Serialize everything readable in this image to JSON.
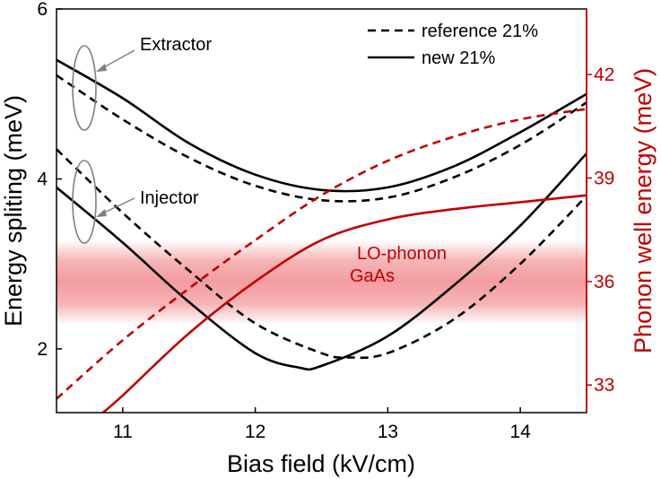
{
  "chart_data": {
    "type": "line",
    "title": "",
    "xlabel": "Bias field (kV/cm)",
    "ylabel": "Energy spliting (meV)",
    "ylabel_right": "Phonon well energy (meV)",
    "xlim": [
      10.5,
      14.5
    ],
    "ylim": [
      1.25,
      6.0
    ],
    "ylim_right": [
      32.2,
      43.9
    ],
    "x_ticks": [
      11,
      12,
      13,
      14
    ],
    "x_tick_labels": [
      "11",
      "12",
      "13",
      "14"
    ],
    "y_ticks": [
      2,
      4,
      6
    ],
    "y_tick_labels": [
      "2",
      "4",
      "6"
    ],
    "y_right_ticks": [
      33,
      36,
      39,
      42
    ],
    "y_right_tick_labels": [
      "33",
      "36",
      "39",
      "42"
    ],
    "legend": {
      "position": "top-right",
      "entries": [
        {
          "label": "reference 21%",
          "style": "dashed"
        },
        {
          "label": "new 21%",
          "style": "solid"
        }
      ]
    },
    "annotations": {
      "extractor": "Extractor",
      "injector": "Injector",
      "lo_phonon_line1": "LO-phonon",
      "lo_phonon_line2": "GaAs",
      "lo_phonon_band": [
        35.25,
        36.7
      ]
    },
    "colors": {
      "black": "#000000",
      "red": "#c00000",
      "band": "#f4a6a8",
      "oval": "#808080"
    },
    "series": [
      {
        "name": "Extractor new 21%",
        "axis": "left",
        "color": "#000000",
        "style": "solid",
        "x": [
          10.5,
          11.0,
          11.5,
          12.0,
          12.5,
          13.0,
          13.5,
          14.0,
          14.5
        ],
        "values": [
          5.4,
          4.95,
          4.42,
          4.05,
          3.87,
          3.9,
          4.15,
          4.55,
          5.0
        ]
      },
      {
        "name": "Extractor reference 21%",
        "axis": "left",
        "color": "#000000",
        "style": "dashed",
        "x": [
          10.5,
          11.0,
          11.5,
          12.0,
          12.5,
          13.0,
          13.5,
          14.0,
          14.5
        ],
        "values": [
          5.22,
          4.7,
          4.25,
          3.92,
          3.75,
          3.78,
          4.02,
          4.4,
          4.9
        ]
      },
      {
        "name": "Injector new 21%",
        "axis": "left",
        "color": "#000000",
        "style": "solid",
        "x": [
          10.5,
          11.0,
          11.5,
          12.0,
          12.33,
          12.5,
          13.0,
          13.5,
          14.0,
          14.5
        ],
        "values": [
          3.9,
          3.25,
          2.55,
          1.95,
          1.78,
          1.8,
          2.15,
          2.75,
          3.45,
          4.3
        ]
      },
      {
        "name": "Injector reference 21%",
        "axis": "left",
        "color": "#000000",
        "style": "dashed",
        "x": [
          10.5,
          11.0,
          11.5,
          12.0,
          12.5,
          12.7,
          13.0,
          13.5,
          14.0,
          14.5
        ],
        "values": [
          4.35,
          3.6,
          2.92,
          2.3,
          1.95,
          1.9,
          1.95,
          2.35,
          3.0,
          3.8
        ]
      },
      {
        "name": "Phonon well reference 21%",
        "axis": "right",
        "color": "#c00000",
        "style": "dashed",
        "x": [
          10.5,
          11.0,
          11.5,
          12.0,
          12.5,
          13.0,
          13.5,
          14.0,
          14.5
        ],
        "values": [
          32.6,
          34.3,
          35.8,
          37.2,
          38.5,
          39.5,
          40.2,
          40.7,
          41.0
        ]
      },
      {
        "name": "Phonon well new 21%",
        "axis": "right",
        "color": "#c00000",
        "style": "solid",
        "x": [
          10.85,
          11.0,
          11.5,
          12.0,
          12.5,
          13.0,
          13.5,
          14.0,
          14.5
        ],
        "values": [
          32.2,
          32.7,
          34.5,
          36.0,
          37.2,
          37.8,
          38.1,
          38.3,
          38.5
        ]
      }
    ]
  }
}
